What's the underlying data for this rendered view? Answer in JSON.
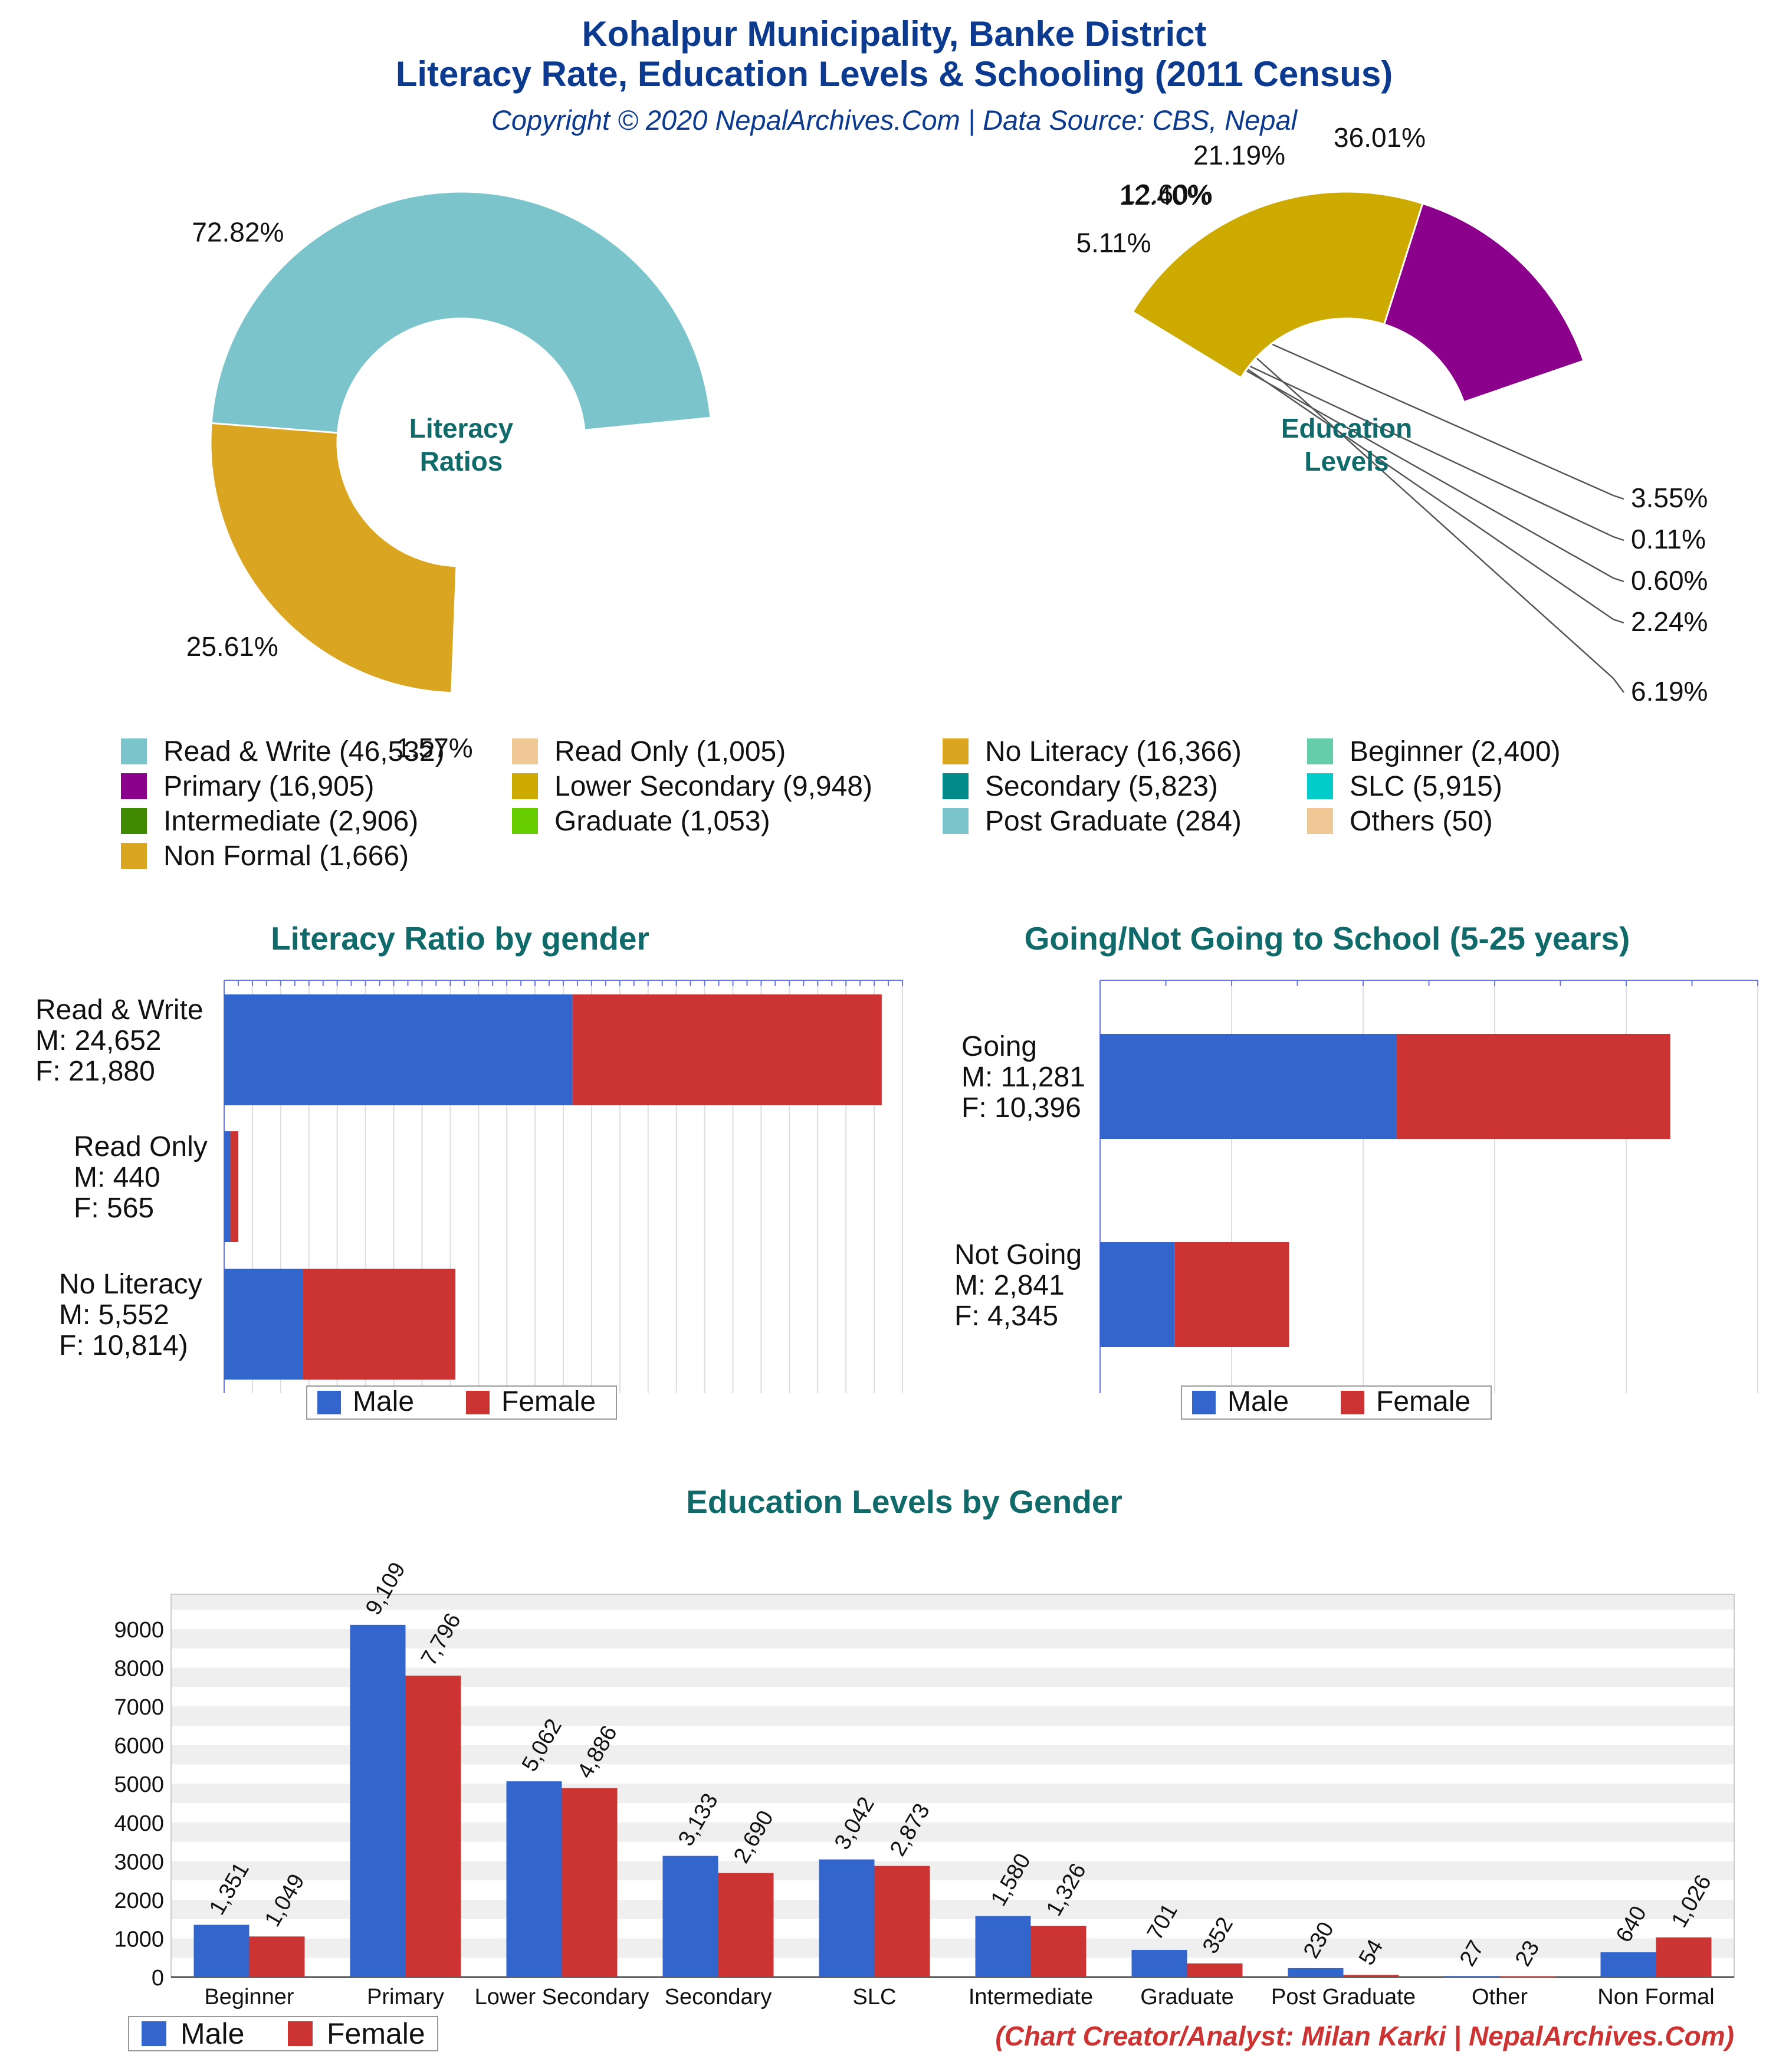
{
  "header": {
    "title_line1": "Kohalpur Municipality, Banke District",
    "title_line2": "Literacy Rate, Education Levels & Schooling (2011 Census)",
    "copyright": "Copyright © 2020 NepalArchives.Com | Data Source: CBS, Nepal"
  },
  "footer": {
    "credit": "(Chart Creator/Analyst: Milan Karki | NepalArchives.Com)"
  },
  "colors": {
    "title_blue": "#0b3a8f",
    "heading_teal": "#106a6a",
    "male": "#3366cc",
    "female": "#cc3333",
    "credit_red": "#cc3333"
  },
  "chart_data": [
    {
      "id": "literacy_ratios",
      "type": "pie",
      "style": "donut",
      "center_label": [
        "Literacy",
        "Ratios"
      ],
      "labels": [
        "Read & Write",
        "Read Only",
        "No Literacy"
      ],
      "values": [
        46532,
        1005,
        16366
      ],
      "percent_labels": [
        "72.82%",
        "1.57%",
        "25.61%"
      ],
      "colors": [
        "#7cc4cc",
        "#f0c896",
        "#daa520"
      ]
    },
    {
      "id": "education_levels",
      "type": "pie",
      "style": "donut",
      "center_label": [
        "Education",
        "Levels"
      ],
      "labels": [
        "Primary",
        "Beginner",
        "Non Formal",
        "Others",
        "Post Graduate",
        "Graduate",
        "Intermediate",
        "SLC",
        "Secondary",
        "Lower Secondary"
      ],
      "values": [
        16905,
        2400,
        1666,
        50,
        284,
        1053,
        2906,
        5915,
        5823,
        9948
      ],
      "percent_labels": [
        "36.01%",
        "5.11%",
        "3.55%",
        "0.11%",
        "0.60%",
        "2.24%",
        "6.19%",
        "12.60%",
        "12.40%",
        "21.19%"
      ],
      "colors": [
        "#8b008b",
        "#66cdaa",
        "#daa520",
        "#f0c896",
        "#7cc4cc",
        "#66cc00",
        "#3f8a00",
        "#00cccc",
        "#008b8b",
        "#ccaa00"
      ]
    },
    {
      "id": "literacy_by_gender",
      "type": "bar",
      "orientation": "horizontal",
      "stacked": true,
      "title": "Literacy Ratio by gender",
      "categories": [
        "Read & Write",
        "Read Only",
        "No Literacy"
      ],
      "category_labels": [
        [
          "Read & Write",
          "M: 24,652",
          "F: 21,880"
        ],
        [
          "Read Only",
          "M: 440",
          "F: 565"
        ],
        [
          "No Literacy",
          "M: 5,552",
          "F: 10,814)"
        ]
      ],
      "series": [
        {
          "name": "Male",
          "values": [
            24652,
            440,
            5552
          ]
        },
        {
          "name": "Female",
          "values": [
            21880,
            565,
            10814
          ]
        }
      ],
      "xlim": [
        0,
        48000
      ],
      "grid": true,
      "legend": "bottom"
    },
    {
      "id": "school_attendance",
      "type": "bar",
      "orientation": "horizontal",
      "stacked": true,
      "title": "Going/Not Going to School (5-25 years)",
      "categories": [
        "Going",
        "Not Going"
      ],
      "category_labels": [
        [
          "Going",
          "M: 11,281",
          "F: 10,396"
        ],
        [
          "Not Going",
          "M: 2,841",
          "F: 4,345"
        ]
      ],
      "series": [
        {
          "name": "Male",
          "values": [
            11281,
            2841
          ]
        },
        {
          "name": "Female",
          "values": [
            10396,
            4345
          ]
        }
      ],
      "xlim": [
        0,
        25000
      ],
      "grid": true,
      "legend": "bottom"
    },
    {
      "id": "education_by_gender",
      "type": "bar",
      "title": "Education Levels by Gender",
      "categories": [
        "Beginner",
        "Primary",
        "Lower Secondary",
        "Secondary",
        "SLC",
        "Intermediate",
        "Graduate",
        "Post Graduate",
        "Other",
        "Non Formal"
      ],
      "series": [
        {
          "name": "Male",
          "values": [
            1351,
            9109,
            5062,
            3133,
            3042,
            1580,
            701,
            230,
            27,
            640
          ],
          "value_labels": [
            "1,351",
            "9,109",
            "5,062",
            "3,133",
            "3,042",
            "1,580",
            "701",
            "230",
            "27",
            "640"
          ]
        },
        {
          "name": "Female",
          "values": [
            1049,
            7796,
            4886,
            2690,
            2873,
            1326,
            352,
            54,
            23,
            1026
          ],
          "value_labels": [
            "1,049",
            "7,796",
            "4,886",
            "2,690",
            "2,873",
            "1,326",
            "352",
            "54",
            "23",
            "1,026"
          ]
        }
      ],
      "ylim": [
        0,
        9900
      ],
      "yticks": [
        0,
        1000,
        2000,
        3000,
        4000,
        5000,
        6000,
        7000,
        8000,
        9000
      ],
      "grid": true,
      "legend": "bottom-left"
    }
  ],
  "legend_top": {
    "items": [
      {
        "label": "Read & Write (46,532)",
        "color": "#7cc4cc"
      },
      {
        "label": "Read Only (1,005)",
        "color": "#f0c896"
      },
      {
        "label": "No Literacy (16,366)",
        "color": "#daa520"
      },
      {
        "label": "Beginner (2,400)",
        "color": "#66cdaa"
      },
      {
        "label": "Primary (16,905)",
        "color": "#8b008b"
      },
      {
        "label": "Lower Secondary (9,948)",
        "color": "#ccaa00"
      },
      {
        "label": "Secondary (5,823)",
        "color": "#008b8b"
      },
      {
        "label": "SLC (5,915)",
        "color": "#00cccc"
      },
      {
        "label": "Intermediate (2,906)",
        "color": "#3f8a00"
      },
      {
        "label": "Graduate (1,053)",
        "color": "#66cc00"
      },
      {
        "label": "Post Graduate (284)",
        "color": "#7cc4cc"
      },
      {
        "label": "Others (50)",
        "color": "#f0c896"
      },
      {
        "label": "Non Formal (1,666)",
        "color": "#daa520"
      }
    ]
  }
}
